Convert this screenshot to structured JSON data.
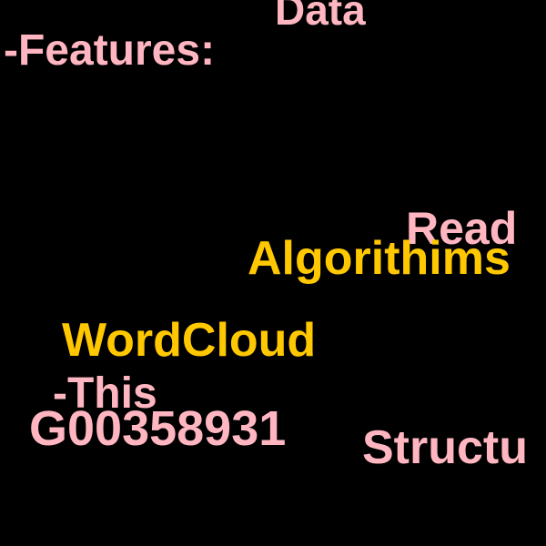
{
  "wordcloud": {
    "background": "#000000",
    "colors": {
      "pink": "#ffb6c1",
      "gold": "#ffc800"
    },
    "words": [
      {
        "text": "Data",
        "color": "pink"
      },
      {
        "text": "-Features:",
        "color": "pink"
      },
      {
        "text": "Read",
        "color": "pink"
      },
      {
        "text": "Algorithims",
        "color": "gold"
      },
      {
        "text": "WordCloud",
        "color": "gold"
      },
      {
        "text": "-This",
        "color": "pink"
      },
      {
        "text": "G00358931",
        "color": "pink"
      },
      {
        "text": "Structu",
        "color": "pink"
      }
    ]
  }
}
